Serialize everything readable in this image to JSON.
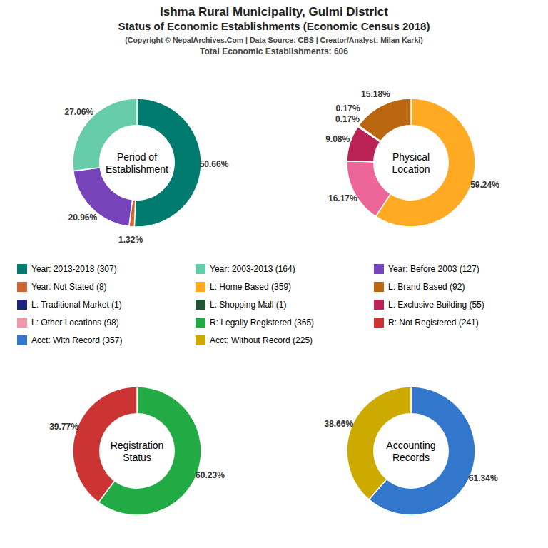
{
  "title": "Ishma Rural Municipality, Gulmi District",
  "subtitle": "Status of Economic Establishments (Economic Census 2018)",
  "annotations": [
    "(Copyright © NepalArchives.Com | Data Source: CBS | Creator/Analyst: Milan Karki)",
    "Total Economic Establishments: 606"
  ],
  "chart_data": [
    {
      "type": "pie",
      "title": "Period of\nEstablishment",
      "values": [
        50.66,
        1.32,
        20.96,
        27.06
      ],
      "value_labels": [
        "50.66%",
        "1.32%",
        "20.96%",
        "27.06%"
      ],
      "colors": [
        "#007B6E",
        "#CC6633",
        "#7744BB",
        "#66CCAA"
      ],
      "data_labels": true
    },
    {
      "type": "pie",
      "title": "Physical\nLocation",
      "values": [
        59.24,
        16.17,
        9.08,
        0.17,
        0.17,
        15.18
      ],
      "value_labels": [
        "59.24%",
        "16.17%",
        "9.08%",
        "0.17%",
        "0.17%",
        "15.18%"
      ],
      "colors": [
        "#FFAA22",
        "#EE6699",
        "#BB2255",
        "#550077",
        "#330000",
        "#BB6611"
      ],
      "data_labels": true
    },
    {
      "type": "pie",
      "title": "Registration\nStatus",
      "values": [
        60.23,
        39.77
      ],
      "value_labels": [
        "60.23%",
        "39.77%"
      ],
      "colors": [
        "#22AA44",
        "#CC3333"
      ],
      "data_labels": true
    },
    {
      "type": "pie",
      "title": "Accounting\nRecords",
      "values": [
        61.34,
        38.66
      ],
      "value_labels": [
        "61.34%",
        "38.66%"
      ],
      "colors": [
        "#3377CC",
        "#CCAA00"
      ],
      "data_labels": true
    },
    {
      "type": "legend",
      "categories": [
        "Year: 2013-2018 (307)",
        "Year: 2003-2013 (164)",
        "Year: Before 2003 (127)",
        "Year: Not Stated (8)",
        "L: Home Based (359)",
        "L: Brand Based (92)",
        "L: Traditional Market (1)",
        "L: Shopping Mall (1)",
        "L: Exclusive Building (55)",
        "L: Other Locations (98)",
        "R: Legally Registered (365)",
        "R: Not Registered (241)",
        "Acct: With Record (357)",
        "Acct: Without Record (225)"
      ],
      "colors": [
        "#007B6E",
        "#66CCAA",
        "#7744BB",
        "#CC6633",
        "#FFAA22",
        "#BB6611",
        "#1A237E",
        "#225533",
        "#BB2255",
        "#EE99AA",
        "#22AA44",
        "#CC3333",
        "#3377CC",
        "#CCAA00"
      ]
    }
  ]
}
